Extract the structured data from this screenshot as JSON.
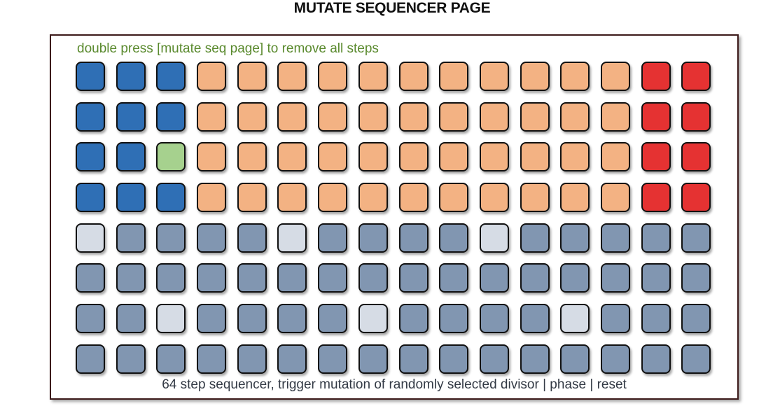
{
  "title": "MUTATE SEQUENCER PAGE",
  "hint": "double press [mutate seq page] to remove all steps",
  "caption": "64 step sequencer, trigger mutation of randomly selected divisor | phase | reset",
  "colors": {
    "B": "#2f6fb5",
    "O": "#f3b283",
    "R": "#e53232",
    "G": "#a6d18e",
    "S": "#8196b1",
    "L": "#d6dce5"
  },
  "color_names": {
    "B": "blue-pad",
    "O": "orange-pad",
    "R": "red-pad",
    "G": "green-pad",
    "S": "slate-pad",
    "L": "light-pad"
  },
  "grid": [
    "BBBOOOOOOOOOOORR",
    "BBBOOOOOOOOOOORR",
    "BBGOOOOOOOOOOORR",
    "BBBOOOOOOOOOOORR",
    "LSSSSLSSSSLSSSSS",
    "SSSSSSSSSSSSSSSS",
    "SSLSSSSLSSSSLSSS",
    "SSSSSSSSSSSSSSSS"
  ]
}
